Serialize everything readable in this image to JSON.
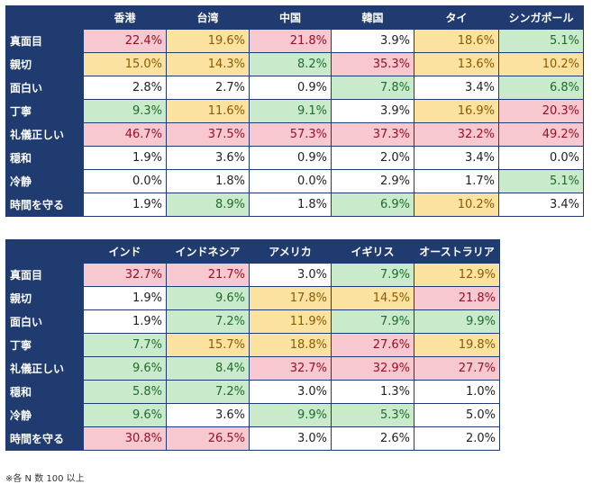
{
  "table1": {
    "columns": [
      "香港",
      "台湾",
      "中国",
      "韓国",
      "タイ",
      "シンガポール"
    ],
    "rows": [
      {
        "label": "真面目",
        "values": [
          "22.4%",
          "19.6%",
          "21.8%",
          "3.9%",
          "18.6%",
          "5.1%"
        ],
        "colors": [
          "red",
          "yellow",
          "red",
          "none",
          "yellow",
          "green"
        ]
      },
      {
        "label": "親切",
        "values": [
          "15.0%",
          "14.3%",
          "8.2%",
          "35.3%",
          "13.6%",
          "10.2%"
        ],
        "colors": [
          "yellow",
          "yellow",
          "green",
          "red",
          "yellow",
          "yellow"
        ]
      },
      {
        "label": "面白い",
        "values": [
          "2.8%",
          "2.7%",
          "0.9%",
          "7.8%",
          "3.4%",
          "6.8%"
        ],
        "colors": [
          "none",
          "none",
          "none",
          "green",
          "none",
          "green"
        ]
      },
      {
        "label": "丁寧",
        "values": [
          "9.3%",
          "11.6%",
          "9.1%",
          "3.9%",
          "16.9%",
          "20.3%"
        ],
        "colors": [
          "green",
          "yellow",
          "green",
          "none",
          "yellow",
          "red"
        ]
      },
      {
        "label": "礼儀正しい",
        "values": [
          "46.7%",
          "37.5%",
          "57.3%",
          "37.3%",
          "32.2%",
          "49.2%"
        ],
        "colors": [
          "red",
          "red",
          "red",
          "red",
          "red",
          "red"
        ]
      },
      {
        "label": "穏和",
        "values": [
          "1.9%",
          "3.6%",
          "0.9%",
          "2.0%",
          "3.4%",
          "0.0%"
        ],
        "colors": [
          "none",
          "none",
          "none",
          "none",
          "none",
          "none"
        ]
      },
      {
        "label": "冷静",
        "values": [
          "0.0%",
          "1.8%",
          "0.0%",
          "2.9%",
          "1.7%",
          "5.1%"
        ],
        "colors": [
          "none",
          "none",
          "none",
          "none",
          "none",
          "green"
        ]
      },
      {
        "label": "時間を守る",
        "values": [
          "1.9%",
          "8.9%",
          "1.8%",
          "6.9%",
          "10.2%",
          "3.4%"
        ],
        "colors": [
          "none",
          "green",
          "none",
          "green",
          "yellow",
          "none"
        ]
      }
    ]
  },
  "table2": {
    "columns": [
      "インド",
      "インドネシア",
      "アメリカ",
      "イギリス",
      "オーストラリア"
    ],
    "rows": [
      {
        "label": "真面目",
        "values": [
          "32.7%",
          "21.7%",
          "3.0%",
          "7.9%",
          "12.9%"
        ],
        "colors": [
          "red",
          "red",
          "none",
          "green",
          "yellow"
        ]
      },
      {
        "label": "親切",
        "values": [
          "1.9%",
          "9.6%",
          "17.8%",
          "14.5%",
          "21.8%"
        ],
        "colors": [
          "none",
          "green",
          "yellow",
          "yellow",
          "red"
        ]
      },
      {
        "label": "面白い",
        "values": [
          "1.9%",
          "7.2%",
          "11.9%",
          "7.9%",
          "9.9%"
        ],
        "colors": [
          "none",
          "green",
          "yellow",
          "green",
          "green"
        ]
      },
      {
        "label": "丁寧",
        "values": [
          "7.7%",
          "15.7%",
          "18.8%",
          "27.6%",
          "19.8%"
        ],
        "colors": [
          "green",
          "yellow",
          "yellow",
          "red",
          "yellow"
        ]
      },
      {
        "label": "礼儀正しい",
        "values": [
          "9.6%",
          "8.4%",
          "32.7%",
          "32.9%",
          "27.7%"
        ],
        "colors": [
          "green",
          "green",
          "red",
          "red",
          "red"
        ]
      },
      {
        "label": "穏和",
        "values": [
          "5.8%",
          "7.2%",
          "3.0%",
          "1.3%",
          "1.0%"
        ],
        "colors": [
          "green",
          "green",
          "none",
          "none",
          "none"
        ]
      },
      {
        "label": "冷静",
        "values": [
          "9.6%",
          "3.6%",
          "9.9%",
          "5.3%",
          "5.0%"
        ],
        "colors": [
          "green",
          "none",
          "green",
          "green",
          "none"
        ]
      },
      {
        "label": "時間を守る",
        "values": [
          "30.8%",
          "26.5%",
          "3.0%",
          "2.6%",
          "2.0%"
        ],
        "colors": [
          "red",
          "red",
          "none",
          "none",
          "none"
        ]
      }
    ]
  },
  "highlight_colors": {
    "red": "#f8c8d0",
    "yellow": "#fbe2a0",
    "green": "#c9ebcc",
    "header": "#1f3b70"
  },
  "footnote": "※各 N 数 100 以上"
}
